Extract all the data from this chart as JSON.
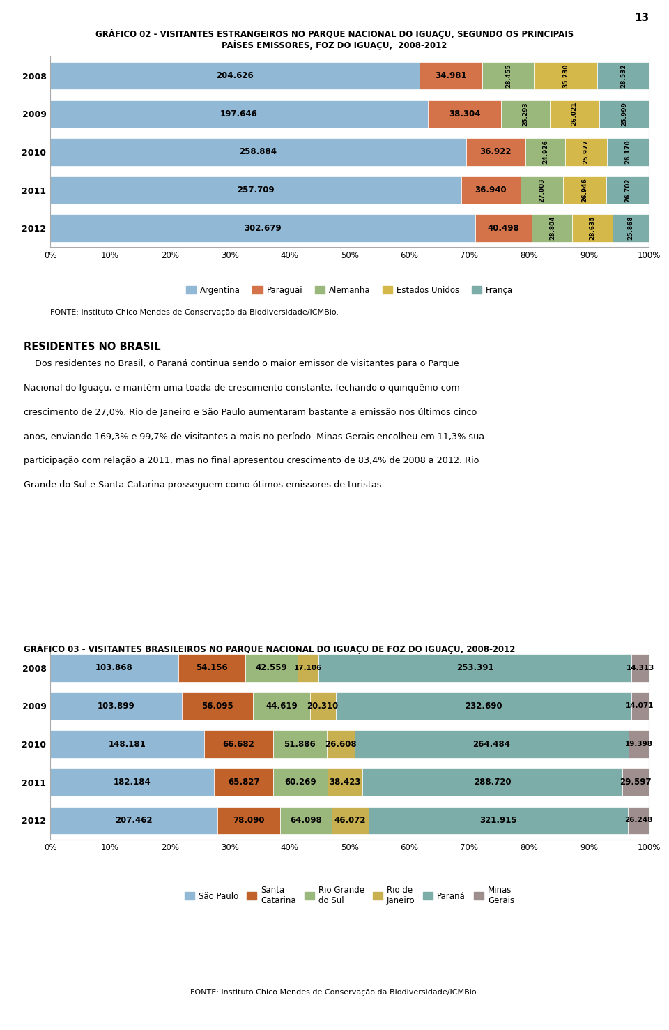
{
  "page_number": "13",
  "chart1": {
    "title_line1": "GRÁFICO 02 - VISITANTES ESTRANGEIROS NO PARQUE NACIONAL DO IGUAÇU, SEGUNDO OS PRINCIPAIS",
    "title_line2": "PAÍSES EMISSORES, FOZ DO IGUAÇU,  2008-2012",
    "years": [
      2008,
      2009,
      2010,
      2011,
      2012
    ],
    "categories": [
      "Argentina",
      "Paraguai",
      "Alemanha",
      "Estados Unidos",
      "França"
    ],
    "colors": [
      "#91B9D5",
      "#D4724A",
      "#9BB87C",
      "#D4B84A",
      "#7DADA8"
    ],
    "values": {
      "2012": [
        302679,
        40498,
        28804,
        28635,
        25868
      ],
      "2011": [
        257709,
        36940,
        27003,
        26946,
        26702
      ],
      "2010": [
        258884,
        36922,
        24926,
        25977,
        26170
      ],
      "2009": [
        197646,
        38304,
        25293,
        26021,
        25999
      ],
      "2008": [
        204626,
        34981,
        28455,
        35230,
        28532
      ]
    },
    "labels": {
      "2012": [
        "302.679",
        "40.498",
        "28.804",
        "28.635",
        "25.868"
      ],
      "2011": [
        "257.709",
        "36.940",
        "27.003",
        "26.946",
        "26.702"
      ],
      "2010": [
        "258.884",
        "36.922",
        "24.926",
        "25.977",
        "26.170"
      ],
      "2009": [
        "197.646",
        "38.304",
        "25.293",
        "26.021",
        "25.999"
      ],
      "2008": [
        "204.626",
        "34.981",
        "28.455",
        "35.230",
        "28.532"
      ]
    },
    "fonte": "FONTE: Instituto Chico Mendes de Conservação da Biodiversidade/ICMBio."
  },
  "text_section": {
    "heading": "RESIDENTES NO BRASIL",
    "lines": [
      "    Dos residentes no Brasil, o Paraná continua sendo o maior emissor de visitantes para o Parque",
      "Nacional do Iguaçu, e mantém uma toada de crescimento constante, fechando o quinquênio com",
      "crescimento de 27,0%. Rio de Janeiro e São Paulo aumentaram bastante a emissão nos últimos cinco",
      "anos, enviando 169,3% e 99,7% de visitantes a mais no período. Minas Gerais encolheu em 11,3% sua",
      "participação com relação a 2011, mas no final apresentou crescimento de 83,4% de 2008 a 2012. Rio",
      "Grande do Sul e Santa Catarina prosseguem como ótimos emissores de turistas."
    ]
  },
  "chart2": {
    "title": "GRÁFICO 03 - VISITANTES BRASILEIROS NO PARQUE NACIONAL DO IGUAÇU DE FOZ DO IGUAÇU, 2008-2012",
    "years": [
      2008,
      2009,
      2010,
      2011,
      2012
    ],
    "categories": [
      "São Paulo",
      "Santa\nCatarina",
      "Rio Grande\ndo Sul",
      "Rio de\nJaneiro",
      "Paraná",
      "Minas\nGerais"
    ],
    "colors": [
      "#91B9D5",
      "#C0622A",
      "#9BB87C",
      "#C8B050",
      "#7DADA8",
      "#9E8E8E"
    ],
    "values": {
      "2012": [
        207462,
        78090,
        64098,
        46072,
        321915,
        26248
      ],
      "2011": [
        182184,
        65827,
        60269,
        38423,
        288720,
        29597
      ],
      "2010": [
        148181,
        66682,
        51886,
        26608,
        264484,
        19398
      ],
      "2009": [
        103899,
        56095,
        44619,
        20310,
        232690,
        14071
      ],
      "2008": [
        103868,
        54156,
        42559,
        17106,
        253391,
        14313
      ]
    },
    "labels": {
      "2012": [
        "207.462",
        "78.090",
        "64.098",
        "46.072",
        "321.915",
        "26.248"
      ],
      "2011": [
        "182.184",
        "65.827",
        "60.269",
        "38.423",
        "288.720",
        "29.597"
      ],
      "2010": [
        "148.181",
        "66.682",
        "51.886",
        "26.608",
        "264.484",
        "19.398"
      ],
      "2009": [
        "103.899",
        "56.095",
        "44.619",
        "20.310",
        "232.690",
        "14.071"
      ],
      "2008": [
        "103.868",
        "54.156",
        "42.559",
        "17.106",
        "253.391",
        "14.313"
      ]
    },
    "fonte": "FONTE: Instituto Chico Mendes de Conservação da Biodiversidade/ICMBio."
  },
  "bg_color": "#FFFFFF",
  "chart_bg": "#FFFFFF",
  "border_color": "#AAAAAA"
}
